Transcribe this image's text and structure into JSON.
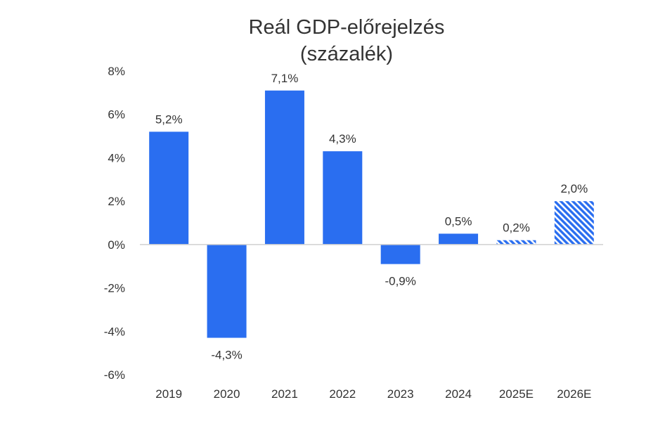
{
  "chart_data": {
    "type": "bar",
    "title": "Reál GDP-előrejelzés",
    "subtitle": "(százalék)",
    "xlabel": "",
    "ylabel": "",
    "categories": [
      "2019",
      "2020",
      "2021",
      "2022",
      "2023",
      "2024",
      "2025E",
      "2026E"
    ],
    "values": [
      5.2,
      -4.3,
      7.1,
      4.3,
      -0.9,
      0.5,
      0.2,
      2.0
    ],
    "data_labels": [
      "5,2%",
      "-4,3%",
      "7,1%",
      "4,3%",
      "-0,9%",
      "0,5%",
      "0,2%",
      "2,0%"
    ],
    "forecast": [
      false,
      false,
      false,
      false,
      false,
      false,
      true,
      true
    ],
    "ylim": [
      -6,
      8
    ],
    "yticks": [
      8,
      6,
      4,
      2,
      0,
      -2,
      -4,
      -6
    ],
    "ytick_labels": [
      "8%",
      "6%",
      "4%",
      "2%",
      "0%",
      "-2%",
      "-4%",
      "-6%"
    ],
    "grid": false,
    "colors": {
      "bar": "#2a6ef0",
      "hatch_bg": "#ffffff",
      "axis": "#d0d0d0"
    }
  }
}
